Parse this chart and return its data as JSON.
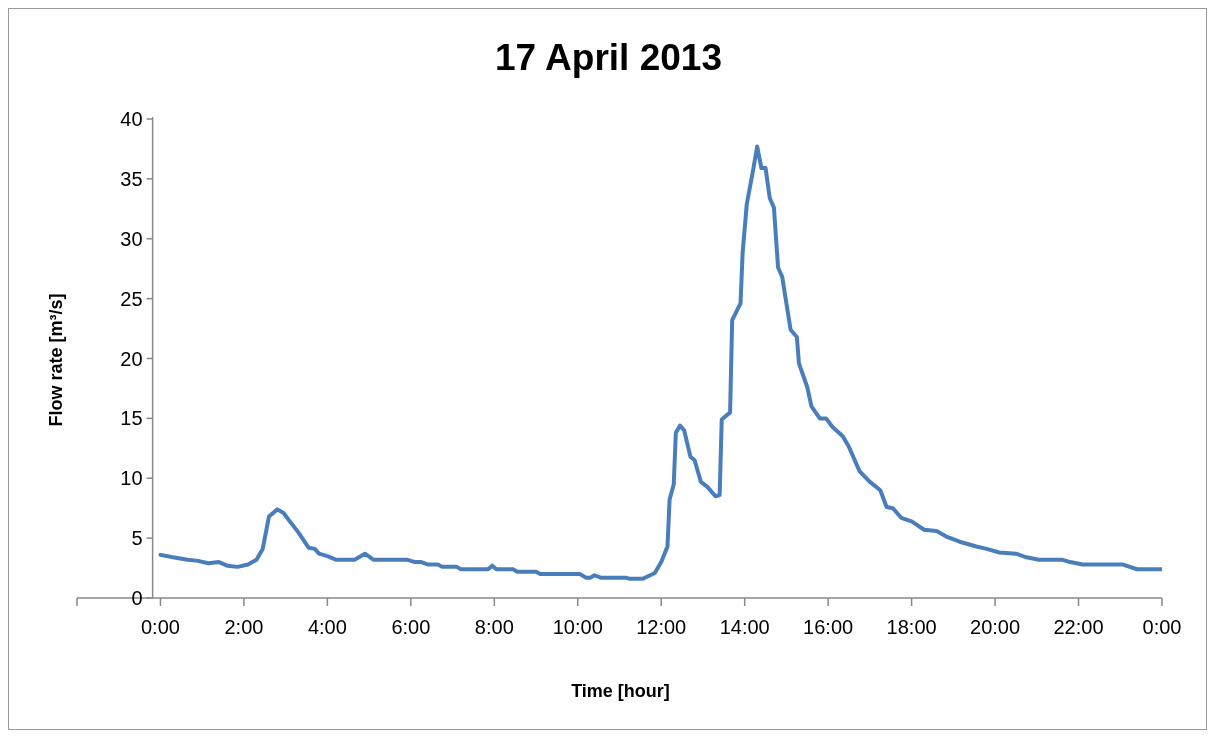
{
  "chart_data": {
    "type": "line",
    "title": "17 April 2013",
    "xlabel": "Time [hour]",
    "ylabel": "Flow rate [m³/s]",
    "xlim": [
      -2,
      24
    ],
    "xticks": [
      {
        "value": -2,
        "label": null
      },
      {
        "value": 0,
        "label": "0:00"
      },
      {
        "value": 2,
        "label": "2:00"
      },
      {
        "value": 4,
        "label": "4:00"
      },
      {
        "value": 6,
        "label": "6:00"
      },
      {
        "value": 8,
        "label": "8:00"
      },
      {
        "value": 10,
        "label": "10:00"
      },
      {
        "value": 12,
        "label": "12:00"
      },
      {
        "value": 14,
        "label": "14:00"
      },
      {
        "value": 16,
        "label": "16:00"
      },
      {
        "value": 18,
        "label": "18:00"
      },
      {
        "value": 20,
        "label": "20:00"
      },
      {
        "value": 22,
        "label": "22:00"
      },
      {
        "value": 24,
        "label": "0:00"
      }
    ],
    "ylim": [
      0,
      40
    ],
    "yticks": [
      0,
      5,
      10,
      15,
      20,
      25,
      30,
      35,
      40
    ],
    "series": [
      {
        "color": "#4a7ebb",
        "x": [
          0,
          0.3,
          0.65,
          0.9,
          1.15,
          1.4,
          1.6,
          1.85,
          2.1,
          2.3,
          2.45,
          2.6,
          2.8,
          2.95,
          3.1,
          3.3,
          3.55,
          3.7,
          3.8,
          4.0,
          4.2,
          4.65,
          4.9,
          5.1,
          5.4,
          5.9,
          6.1,
          6.25,
          6.4,
          6.65,
          6.75,
          7.1,
          7.2,
          7.7,
          7.85,
          7.95,
          8.05,
          8.45,
          8.55,
          9.0,
          9.1,
          10.05,
          10.2,
          10.3,
          10.4,
          10.55,
          11.15,
          11.25,
          11.55,
          11.8,
          11.85,
          12.0,
          12.15,
          12.2,
          12.3,
          12.35,
          12.45,
          12.55,
          12.7,
          12.8,
          12.95,
          13.1,
          13.3,
          13.4,
          13.45,
          13.65,
          13.7,
          13.9,
          13.95,
          14.05,
          14.2,
          14.3,
          14.4,
          14.5,
          14.6,
          14.7,
          14.8,
          14.9,
          15.1,
          15.25,
          15.3,
          15.5,
          15.6,
          15.8,
          15.95,
          16.1,
          16.35,
          16.5,
          16.75,
          17.0,
          17.25,
          17.4,
          17.55,
          17.75,
          18.0,
          18.3,
          18.6,
          18.85,
          19.15,
          19.55,
          19.8,
          20.1,
          20.5,
          20.75,
          21.05,
          21.6,
          21.8,
          22.1,
          23.05,
          23.4,
          24.0
        ],
        "values": [
          3.6,
          3.4,
          3.2,
          3.1,
          2.9,
          3.0,
          2.7,
          2.6,
          2.8,
          3.2,
          4.1,
          6.8,
          7.4,
          7.1,
          6.4,
          5.5,
          4.2,
          4.1,
          3.7,
          3.5,
          3.2,
          3.2,
          3.7,
          3.2,
          3.2,
          3.2,
          3.0,
          3.0,
          2.8,
          2.8,
          2.6,
          2.6,
          2.4,
          2.4,
          2.4,
          2.7,
          2.4,
          2.4,
          2.2,
          2.2,
          2.0,
          2.0,
          1.7,
          1.7,
          1.9,
          1.7,
          1.7,
          1.6,
          1.6,
          2.0,
          2.1,
          3.0,
          4.3,
          8.2,
          9.5,
          13.8,
          14.4,
          14.0,
          11.8,
          11.5,
          9.7,
          9.3,
          8.5,
          8.6,
          14.9,
          15.5,
          23.2,
          24.6,
          28.8,
          32.9,
          35.7,
          37.7,
          35.9,
          35.9,
          33.4,
          32.6,
          27.6,
          26.8,
          22.4,
          21.8,
          19.6,
          17.6,
          16.0,
          15.0,
          15.0,
          14.3,
          13.5,
          12.6,
          10.6,
          9.7,
          9.0,
          7.6,
          7.5,
          6.7,
          6.4,
          5.7,
          5.6,
          5.1,
          4.7,
          4.3,
          4.1,
          3.8,
          3.7,
          3.4,
          3.2,
          3.2,
          3.0,
          2.8,
          2.8,
          2.4,
          2.4
        ]
      }
    ]
  }
}
